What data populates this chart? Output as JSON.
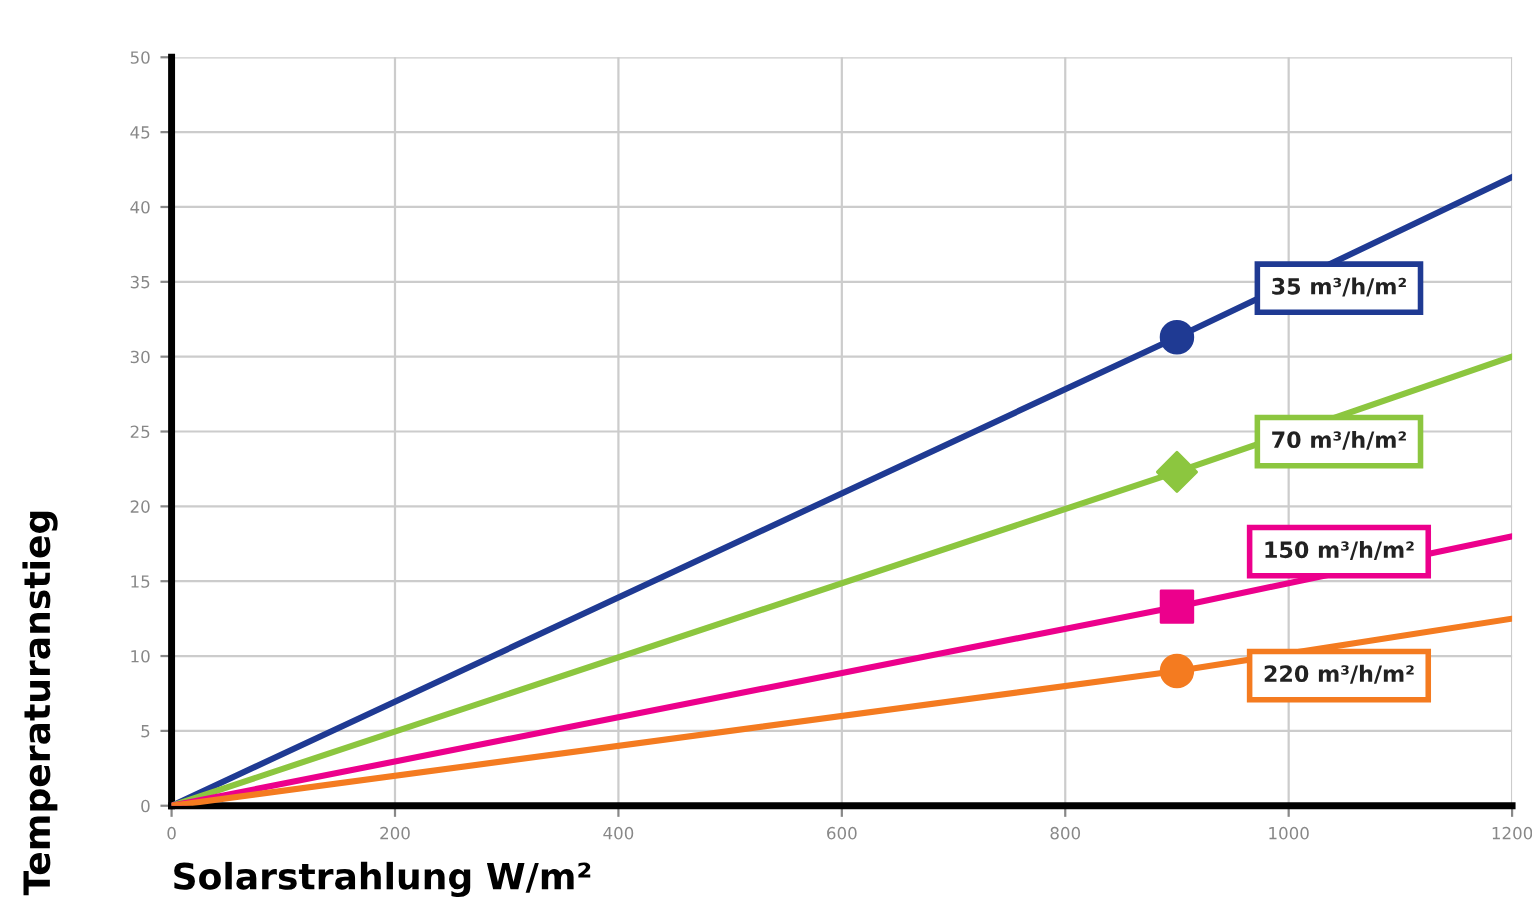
{
  "chart_data": {
    "type": "line",
    "xlabel": "Solarstrahlung W/m²",
    "ylabel": "Temperaturanstieg",
    "x": [
      0,
      900,
      1200
    ],
    "series": [
      {
        "name": "35 m³/h/m²",
        "color": "#1f3a93",
        "values": [
          0,
          31.3,
          42
        ]
      },
      {
        "name": "70 m³/h/m²",
        "color": "#8cc63f",
        "values": [
          0,
          22.3,
          30
        ]
      },
      {
        "name": "150 m³/h/m²",
        "color": "#ec008c",
        "values": [
          0,
          13.3,
          18
        ]
      },
      {
        "name": "220 m³/h/m²",
        "color": "#f47b20",
        "values": [
          0,
          9,
          12.5
        ]
      },
      {
        "type": "scatter",
        "color": "#1f3a93",
        "marker": "circle",
        "values": [
          null,
          31.3,
          null
        ]
      },
      {
        "type": "scatter",
        "color": "#8cc63f",
        "marker": "diamond",
        "values": [
          null,
          22.3,
          null
        ]
      },
      {
        "type": "scatter",
        "color": "#ec008c",
        "marker": "square",
        "values": [
          null,
          13.3,
          null
        ]
      },
      {
        "type": "scatter",
        "color": "#f47b20",
        "marker": "circle",
        "values": [
          null,
          9,
          null
        ]
      }
    ],
    "xlim": [
      0,
      1200
    ],
    "ylim": [
      0,
      50
    ],
    "xticks": [
      0,
      200,
      400,
      600,
      800,
      1000,
      1200
    ],
    "yticks": [
      0,
      5,
      10,
      15,
      20,
      25,
      30,
      35,
      40,
      45,
      50
    ],
    "grid": true,
    "legend": false
  }
}
